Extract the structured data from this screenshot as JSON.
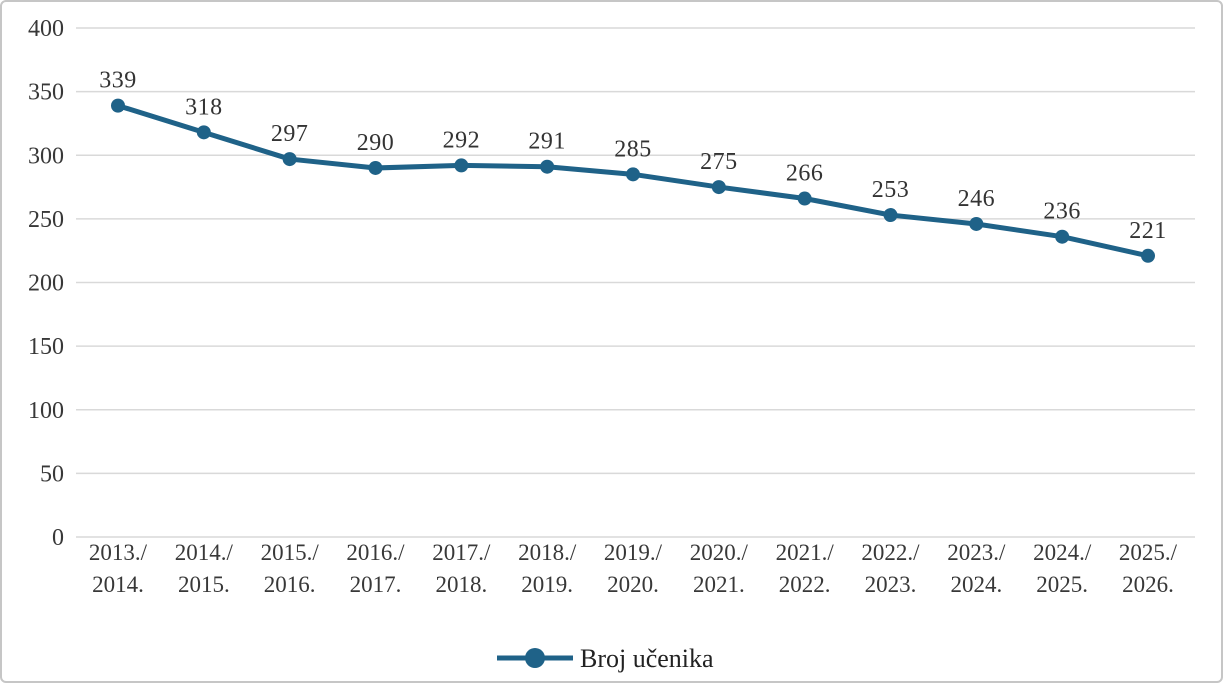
{
  "chart_data": {
    "type": "line",
    "title": "",
    "categories": [
      "2013./2014.",
      "2014./2015.",
      "2015./2016.",
      "2016./2017.",
      "2017./2018.",
      "2018./2019.",
      "2019./2020.",
      "2020./2021.",
      "2021./2022.",
      "2022./2023.",
      "2023./2024.",
      "2024./2025.",
      "2025./2026."
    ],
    "series": [
      {
        "name": "Broj učenika",
        "values": [
          339,
          318,
          297,
          290,
          292,
          291,
          285,
          275,
          266,
          253,
          246,
          236,
          221
        ]
      }
    ],
    "xlabel": "",
    "ylabel": "",
    "ylim": [
      0,
      400
    ],
    "y_ticks": [
      0,
      50,
      100,
      150,
      200,
      250,
      300,
      350,
      400
    ],
    "grid": true,
    "data_labels": true,
    "legend_position": "bottom-center",
    "colors": {
      "line": "#1F6288",
      "marker": "#1F6288",
      "grid": "#D9D9D9",
      "text": "#383838",
      "frame_border": "#C6C6C6",
      "background": "#FFFFFF"
    }
  },
  "legend": {
    "series_label": "Broj učenika"
  }
}
